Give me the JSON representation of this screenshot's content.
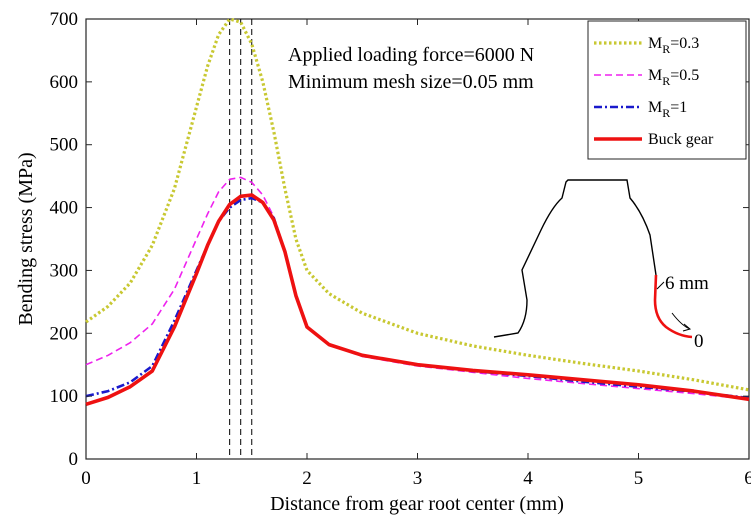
{
  "chart_data": {
    "type": "line",
    "xlabel": "Distance from gear root center (mm)",
    "ylabel": "Bending stress (MPa)",
    "xlim": [
      0,
      6
    ],
    "ylim": [
      0,
      700
    ],
    "xticks": [
      0,
      1,
      2,
      3,
      4,
      5,
      6
    ],
    "yticks": [
      0,
      100,
      200,
      300,
      400,
      500,
      600,
      700
    ],
    "grid": false,
    "legend_position": "top-right",
    "annotations": [
      "Applied loading force=6000 N",
      "Minimum mesh size=0.05 mm"
    ],
    "vlines": [
      1.3,
      1.4,
      1.5
    ],
    "series": [
      {
        "name": "M_R=0.3",
        "label_main": "M",
        "label_sub": "R",
        "label_tail": "=0.3",
        "color": "#c8c832",
        "style": "dotted",
        "x": [
          0,
          0.2,
          0.4,
          0.6,
          0.8,
          1.0,
          1.1,
          1.2,
          1.3,
          1.4,
          1.5,
          1.6,
          1.7,
          1.8,
          1.9,
          2.0,
          2.2,
          2.5,
          3.0,
          3.5,
          4.0,
          4.5,
          5.0,
          5.5,
          6.0
        ],
        "y": [
          218,
          243,
          280,
          340,
          430,
          560,
          625,
          675,
          700,
          695,
          660,
          600,
          520,
          430,
          350,
          300,
          263,
          232,
          200,
          180,
          165,
          152,
          140,
          126,
          110
        ]
      },
      {
        "name": "M_R=0.5",
        "label_main": "M",
        "label_sub": "R",
        "label_tail": "=0.5",
        "color": "#ee22ee",
        "style": "dashed",
        "x": [
          0,
          0.2,
          0.4,
          0.6,
          0.8,
          1.0,
          1.1,
          1.2,
          1.3,
          1.4,
          1.5,
          1.6,
          1.7,
          1.8,
          1.9,
          2.0,
          2.2,
          2.5,
          3.0,
          3.5,
          4.0,
          4.5,
          5.0,
          5.5,
          6.0
        ],
        "y": [
          150,
          165,
          185,
          215,
          270,
          350,
          390,
          425,
          445,
          448,
          440,
          420,
          385,
          330,
          260,
          210,
          182,
          163,
          148,
          138,
          128,
          120,
          112,
          104,
          95
        ]
      },
      {
        "name": "M_R=1",
        "label_main": "M",
        "label_sub": "R",
        "label_tail": "=1",
        "color": "#1a1acc",
        "style": "dashdot",
        "x": [
          0,
          0.2,
          0.4,
          0.6,
          0.8,
          1.0,
          1.1,
          1.2,
          1.3,
          1.4,
          1.5,
          1.6,
          1.7,
          1.8,
          1.9,
          2.0,
          2.2,
          2.5,
          3.0,
          3.5,
          4.0,
          4.5,
          5.0,
          5.5,
          6.0
        ],
        "y": [
          100,
          108,
          122,
          148,
          220,
          300,
          340,
          378,
          400,
          412,
          415,
          408,
          383,
          330,
          260,
          210,
          182,
          165,
          150,
          140,
          132,
          123,
          115,
          107,
          97
        ]
      },
      {
        "name": "Buck gear",
        "label_main": "Buck gear",
        "label_sub": "",
        "label_tail": "",
        "color": "#ee1111",
        "style": "solid",
        "x": [
          0,
          0.2,
          0.4,
          0.6,
          0.8,
          1.0,
          1.1,
          1.2,
          1.3,
          1.4,
          1.5,
          1.6,
          1.7,
          1.8,
          1.9,
          2.0,
          2.2,
          2.5,
          3.0,
          3.5,
          4.0,
          4.5,
          5.0,
          5.5,
          6.0
        ],
        "y": [
          87,
          98,
          115,
          140,
          210,
          295,
          340,
          378,
          405,
          418,
          420,
          408,
          380,
          330,
          260,
          210,
          182,
          165,
          150,
          141,
          134,
          126,
          118,
          108,
          95
        ]
      }
    ],
    "inset": {
      "label_top": "6 mm",
      "label_bottom": "0"
    }
  }
}
